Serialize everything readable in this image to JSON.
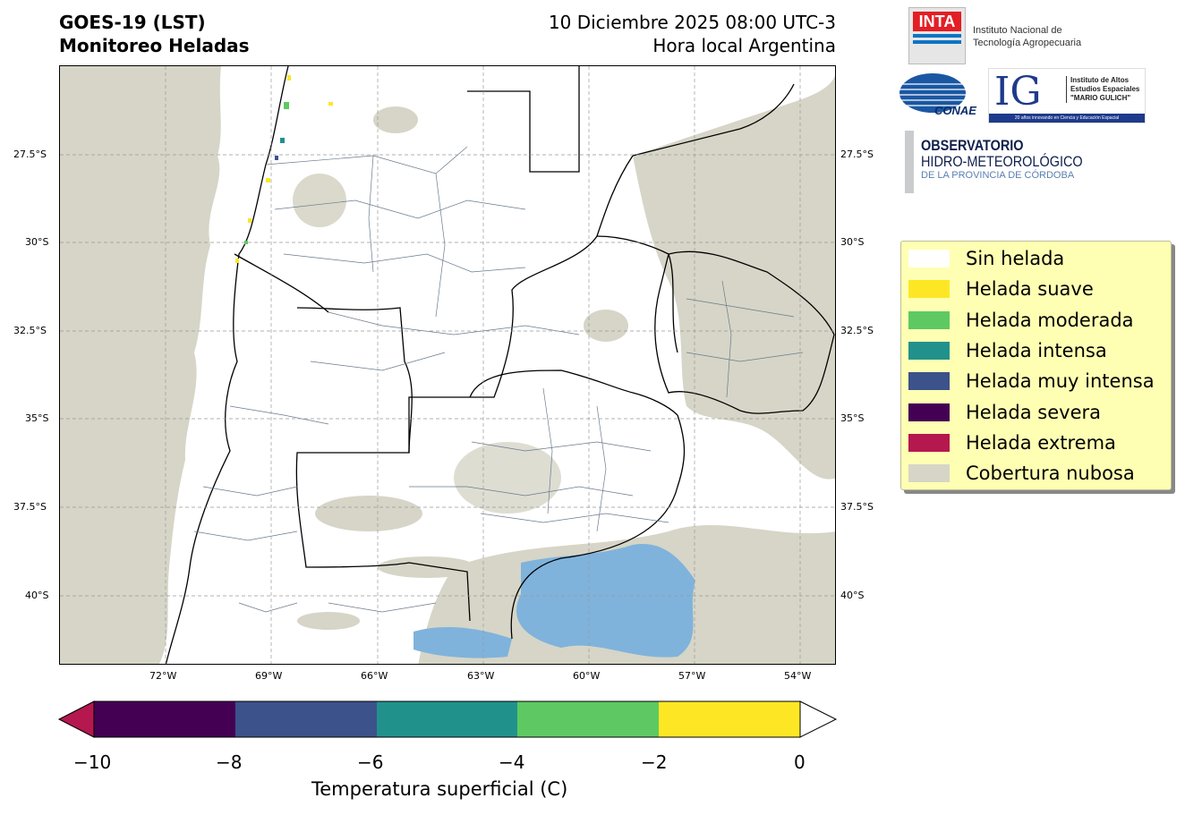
{
  "header": {
    "title_line1": "GOES-19 (LST)",
    "title_line2": "Monitoreo Heladas",
    "date_line1": "10 Diciembre 2025 08:00 UTC-3",
    "date_line2": "Hora local Argentina"
  },
  "map": {
    "lat_labels": [
      "27.5°S",
      "30°S",
      "32.5°S",
      "35°S",
      "37.5°S",
      "40°S"
    ],
    "lon_labels": [
      "72°W",
      "69°W",
      "66°W",
      "63°W",
      "60°W",
      "57°W",
      "54°W"
    ],
    "colors": {
      "land": "#ffffff",
      "cloud": "#d6d5c7",
      "water_cold": "#7fb3dc",
      "border": "#000000",
      "dept": "#6a7a8c"
    }
  },
  "legend": {
    "items": [
      {
        "label": "Sin helada",
        "color": "#ffffff"
      },
      {
        "label": "Helada suave",
        "color": "#fde725"
      },
      {
        "label": "Helada moderada",
        "color": "#5ec962"
      },
      {
        "label": "Helada intensa",
        "color": "#21918c"
      },
      {
        "label": "Helada muy intensa",
        "color": "#3b528b"
      },
      {
        "label": "Helada severa",
        "color": "#440154"
      },
      {
        "label": "Helada extrema",
        "color": "#b5174f"
      },
      {
        "label": "Cobertura nubosa",
        "color": "#d6d5c7"
      }
    ]
  },
  "colorbar": {
    "label": "Temperatura superficial (C)",
    "ticks": [
      "−10",
      "−8",
      "−6",
      "−4",
      "−2",
      "0"
    ],
    "under_color": "#b5174f",
    "over_color": "#ffffff",
    "segments": [
      "#440154",
      "#3b528b",
      "#21918c",
      "#5ec962",
      "#fde725"
    ]
  },
  "logos": {
    "inta_mark": "INTA",
    "inta_line1": "Instituto Nacional de",
    "inta_line2": "Tecnología Agropecuaria",
    "conae_mark": "CONAE",
    "ig_mark": "IG",
    "ig_line1": "Instituto de Altos",
    "ig_line2": "Estudios Espaciales",
    "ig_line3": "\"MARIO GULICH\"",
    "ig_footer": "20 años innovando en Ciencia y Educación Espacial",
    "obs_line1": "OBSERVATORIO",
    "obs_line2": "HIDRO-METEOROLÓGICO",
    "obs_line3": "DE LA PROVINCIA DE CÓRDOBA"
  }
}
